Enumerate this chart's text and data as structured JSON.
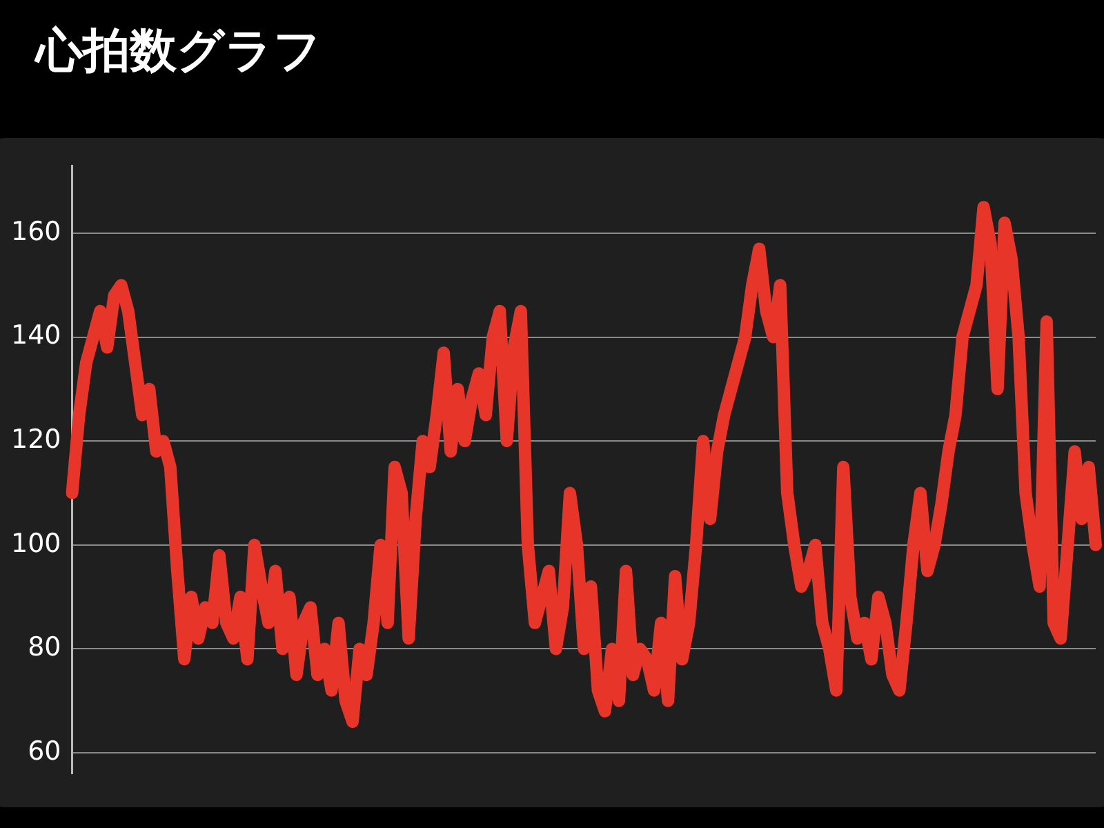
{
  "chart_data": {
    "type": "line",
    "title": "心拍数グラフ",
    "categories": [
      null,
      null,
      null,
      null,
      null,
      null,
      null,
      null,
      null,
      null,
      null,
      null,
      null,
      null,
      null,
      null,
      null,
      null,
      null,
      null,
      null,
      null,
      null,
      null,
      null,
      null,
      null,
      null,
      null,
      null,
      null,
      null,
      null,
      null,
      null,
      null,
      null,
      null,
      null,
      null,
      null,
      null,
      null,
      null,
      null,
      null,
      null,
      null,
      null,
      null,
      null,
      null,
      null,
      null,
      null,
      null,
      null,
      null,
      null,
      null,
      null,
      null,
      null,
      null,
      null,
      null,
      null,
      null,
      null,
      null,
      null,
      null,
      null,
      null,
      null,
      null,
      null,
      null,
      null,
      null,
      null,
      null,
      null,
      null,
      null,
      null,
      null,
      null,
      null,
      null,
      null,
      null,
      null,
      null,
      null,
      null,
      null,
      null,
      null,
      null,
      null,
      null,
      null,
      null,
      null,
      null,
      null,
      null,
      null,
      null,
      null,
      null,
      null,
      null,
      null,
      null,
      null,
      null,
      null,
      null,
      null,
      null,
      null,
      null,
      null,
      null,
      null,
      null,
      null,
      null,
      null,
      null,
      null,
      null,
      null,
      null,
      null,
      null,
      null,
      null,
      null,
      null,
      null,
      null,
      null,
      null,
      null
    ],
    "series": [
      {
        "color": "#e8352a",
        "values": [
          110,
          125,
          135,
          140,
          145,
          138,
          148,
          150,
          145,
          135,
          125,
          130,
          118,
          120,
          115,
          95,
          78,
          90,
          82,
          88,
          85,
          98,
          85,
          82,
          90,
          78,
          100,
          92,
          85,
          95,
          80,
          90,
          75,
          85,
          88,
          75,
          80,
          72,
          85,
          70,
          66,
          80,
          75,
          85,
          100,
          85,
          115,
          110,
          82,
          105,
          120,
          115,
          125,
          137,
          118,
          130,
          120,
          128,
          133,
          125,
          140,
          145,
          120,
          138,
          145,
          100,
          85,
          90,
          95,
          80,
          88,
          110,
          100,
          80,
          92,
          72,
          68,
          80,
          70,
          95,
          75,
          80,
          78,
          72,
          85,
          70,
          94,
          78,
          85,
          100,
          120,
          105,
          118,
          125,
          130,
          135,
          140,
          150,
          157,
          145,
          140,
          150,
          110,
          100,
          92,
          95,
          100,
          85,
          80,
          72,
          115,
          90,
          82,
          85,
          78,
          90,
          85,
          75,
          72,
          85,
          100,
          110,
          95,
          100,
          108,
          118,
          125,
          140,
          145,
          150,
          165,
          158,
          130,
          162,
          155,
          140,
          110,
          100,
          92,
          143,
          85,
          82,
          100,
          118,
          105,
          115,
          100
        ]
      }
    ],
    "ylim": [
      56,
      173
    ],
    "yticks": [
      60,
      80,
      100,
      120,
      140,
      160
    ],
    "grid": "y",
    "legend": false,
    "marker": "none",
    "line_style": "solid",
    "tick_labels": "y"
  }
}
